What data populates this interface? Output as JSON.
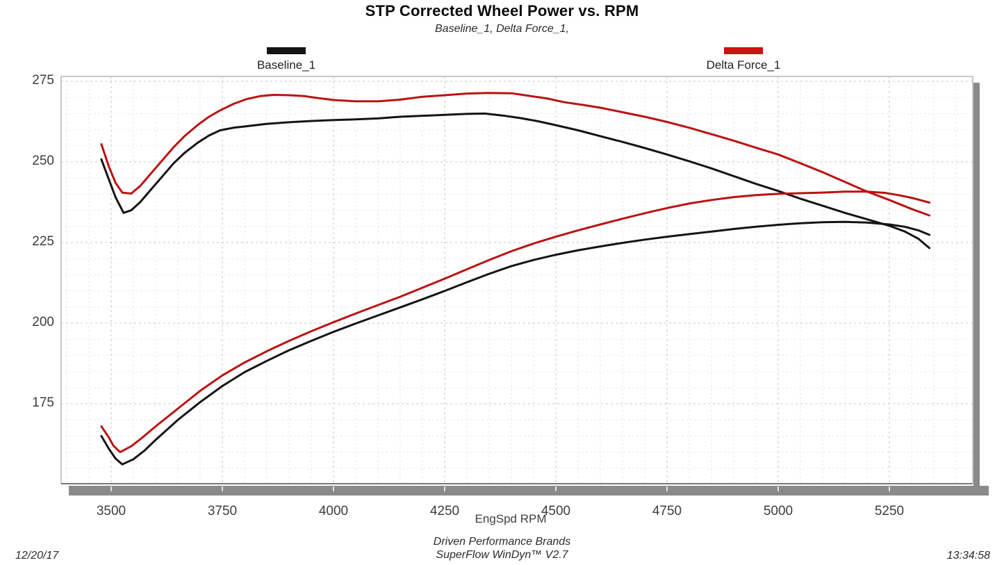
{
  "header": {
    "title": "STP Corrected Wheel Power vs. RPM",
    "subtitle": "Baseline_1, Delta Force_1,"
  },
  "legend": [
    {
      "label": "Baseline_1",
      "color": "#141414"
    },
    {
      "label": "Delta Force_1",
      "color": "#cc1111"
    }
  ],
  "footer": {
    "xaxis_title": "EngSpd  RPM",
    "brand_line1": "Driven Performance Brands",
    "brand_line2": "SuperFlow WinDyn™ V2.7",
    "date": "12/20/17",
    "time": "13:34:58"
  },
  "chart_data": {
    "type": "line",
    "title": "STP Corrected Wheel Power vs. RPM",
    "subtitle": "Baseline_1, Delta Force_1,",
    "xlabel": "EngSpd RPM",
    "ylabel": "",
    "x_ticks": [
      3500,
      3750,
      4000,
      4250,
      4500,
      4750,
      5000,
      5250
    ],
    "y_ticks": [
      175,
      200,
      225,
      250,
      275
    ],
    "xlim": [
      3387,
      5437
    ],
    "ylim": [
      150,
      276
    ],
    "grid": {
      "x_minor_step": 50,
      "x_major_step": 250,
      "y_minor_step": 5,
      "y_major_step": 25,
      "style": "dashed"
    },
    "legend_position": "top",
    "colors": {
      "baseline": "#141414",
      "delta": "#bb1212",
      "grid_minor": "#e2e2e2",
      "grid_major": "#c6c6c6",
      "border_light": "#b6b6b6",
      "border_dark": "#8a8a8a",
      "axis_bar": "#8a8a8a",
      "axis_bar_tick": "#e6e6e6"
    },
    "series": [
      {
        "name": "Baseline_1 (upper curve)",
        "run": "Baseline_1",
        "curve": "upper",
        "color_key": "baseline",
        "points": [
          [
            3478,
            250.8
          ],
          [
            3495,
            244.5
          ],
          [
            3510,
            239.0
          ],
          [
            3528,
            234.2
          ],
          [
            3545,
            235.0
          ],
          [
            3565,
            237.5
          ],
          [
            3590,
            241.5
          ],
          [
            3615,
            245.5
          ],
          [
            3640,
            249.5
          ],
          [
            3665,
            252.8
          ],
          [
            3695,
            256.0
          ],
          [
            3720,
            258.2
          ],
          [
            3745,
            259.8
          ],
          [
            3775,
            260.6
          ],
          [
            3800,
            261.0
          ],
          [
            3850,
            261.8
          ],
          [
            3900,
            262.3
          ],
          [
            3950,
            262.7
          ],
          [
            4000,
            263.0
          ],
          [
            4050,
            263.2
          ],
          [
            4100,
            263.5
          ],
          [
            4150,
            264.0
          ],
          [
            4200,
            264.3
          ],
          [
            4250,
            264.6
          ],
          [
            4300,
            264.9
          ],
          [
            4340,
            265.0
          ],
          [
            4380,
            264.4
          ],
          [
            4420,
            263.6
          ],
          [
            4460,
            262.6
          ],
          [
            4500,
            261.4
          ],
          [
            4550,
            259.8
          ],
          [
            4600,
            258.0
          ],
          [
            4650,
            256.2
          ],
          [
            4700,
            254.3
          ],
          [
            4750,
            252.3
          ],
          [
            4800,
            250.2
          ],
          [
            4850,
            248.0
          ],
          [
            4900,
            245.6
          ],
          [
            4950,
            243.2
          ],
          [
            5000,
            241.0
          ],
          [
            5050,
            238.6
          ],
          [
            5100,
            236.4
          ],
          [
            5150,
            234.2
          ],
          [
            5200,
            232.2
          ],
          [
            5250,
            230.2
          ],
          [
            5285,
            228.4
          ],
          [
            5315,
            226.2
          ],
          [
            5340,
            223.3
          ]
        ]
      },
      {
        "name": "Delta Force_1 (upper curve)",
        "run": "Delta Force_1",
        "curve": "upper",
        "color_key": "delta",
        "points": [
          [
            3478,
            255.5
          ],
          [
            3495,
            248.5
          ],
          [
            3510,
            243.5
          ],
          [
            3525,
            240.5
          ],
          [
            3545,
            240.2
          ],
          [
            3565,
            242.5
          ],
          [
            3590,
            246.5
          ],
          [
            3615,
            250.5
          ],
          [
            3640,
            254.5
          ],
          [
            3665,
            258.0
          ],
          [
            3695,
            261.5
          ],
          [
            3720,
            264.0
          ],
          [
            3745,
            266.0
          ],
          [
            3775,
            268.0
          ],
          [
            3805,
            269.5
          ],
          [
            3835,
            270.4
          ],
          [
            3865,
            270.8
          ],
          [
            3900,
            270.7
          ],
          [
            3935,
            270.4
          ],
          [
            3965,
            269.8
          ],
          [
            4000,
            269.2
          ],
          [
            4050,
            268.8
          ],
          [
            4100,
            268.8
          ],
          [
            4150,
            269.3
          ],
          [
            4200,
            270.2
          ],
          [
            4250,
            270.7
          ],
          [
            4300,
            271.2
          ],
          [
            4350,
            271.4
          ],
          [
            4400,
            271.3
          ],
          [
            4440,
            270.5
          ],
          [
            4480,
            269.7
          ],
          [
            4520,
            268.5
          ],
          [
            4560,
            267.7
          ],
          [
            4600,
            266.8
          ],
          [
            4650,
            265.4
          ],
          [
            4700,
            264.0
          ],
          [
            4750,
            262.4
          ],
          [
            4800,
            260.6
          ],
          [
            4850,
            258.6
          ],
          [
            4900,
            256.6
          ],
          [
            4950,
            254.4
          ],
          [
            5000,
            252.3
          ],
          [
            5050,
            249.6
          ],
          [
            5100,
            246.8
          ],
          [
            5150,
            243.8
          ],
          [
            5200,
            240.8
          ],
          [
            5250,
            238.2
          ],
          [
            5300,
            235.4
          ],
          [
            5340,
            233.4
          ]
        ]
      },
      {
        "name": "Baseline_1 (lower curve)",
        "run": "Baseline_1",
        "curve": "lower",
        "color_key": "baseline",
        "points": [
          [
            3478,
            165.0
          ],
          [
            3495,
            161.0
          ],
          [
            3510,
            158.0
          ],
          [
            3525,
            156.2
          ],
          [
            3550,
            157.8
          ],
          [
            3575,
            160.5
          ],
          [
            3600,
            163.8
          ],
          [
            3650,
            170.0
          ],
          [
            3700,
            175.5
          ],
          [
            3750,
            180.5
          ],
          [
            3800,
            184.8
          ],
          [
            3850,
            188.3
          ],
          [
            3900,
            191.6
          ],
          [
            3950,
            194.5
          ],
          [
            4000,
            197.3
          ],
          [
            4050,
            199.9
          ],
          [
            4100,
            202.4
          ],
          [
            4150,
            204.9
          ],
          [
            4200,
            207.4
          ],
          [
            4250,
            210.0
          ],
          [
            4300,
            212.7
          ],
          [
            4350,
            215.3
          ],
          [
            4400,
            217.7
          ],
          [
            4450,
            219.6
          ],
          [
            4500,
            221.2
          ],
          [
            4550,
            222.6
          ],
          [
            4600,
            223.8
          ],
          [
            4650,
            224.9
          ],
          [
            4700,
            225.9
          ],
          [
            4750,
            226.8
          ],
          [
            4800,
            227.6
          ],
          [
            4850,
            228.4
          ],
          [
            4900,
            229.2
          ],
          [
            4950,
            229.9
          ],
          [
            5000,
            230.5
          ],
          [
            5050,
            231.0
          ],
          [
            5100,
            231.3
          ],
          [
            5150,
            231.4
          ],
          [
            5200,
            231.2
          ],
          [
            5250,
            230.6
          ],
          [
            5285,
            229.9
          ],
          [
            5315,
            228.8
          ],
          [
            5340,
            227.4
          ]
        ]
      },
      {
        "name": "Delta Force_1 (lower curve)",
        "run": "Delta Force_1",
        "curve": "lower",
        "color_key": "delta",
        "points": [
          [
            3478,
            168.0
          ],
          [
            3495,
            164.5
          ],
          [
            3505,
            162.0
          ],
          [
            3520,
            160.0
          ],
          [
            3545,
            161.8
          ],
          [
            3570,
            164.5
          ],
          [
            3600,
            168.0
          ],
          [
            3650,
            173.5
          ],
          [
            3700,
            179.0
          ],
          [
            3750,
            183.8
          ],
          [
            3800,
            187.8
          ],
          [
            3850,
            191.3
          ],
          [
            3900,
            194.5
          ],
          [
            3950,
            197.5
          ],
          [
            4000,
            200.3
          ],
          [
            4050,
            203.0
          ],
          [
            4100,
            205.6
          ],
          [
            4150,
            208.2
          ],
          [
            4200,
            211.0
          ],
          [
            4250,
            213.8
          ],
          [
            4300,
            216.7
          ],
          [
            4350,
            219.6
          ],
          [
            4400,
            222.3
          ],
          [
            4450,
            224.7
          ],
          [
            4500,
            226.8
          ],
          [
            4550,
            228.8
          ],
          [
            4600,
            230.6
          ],
          [
            4650,
            232.4
          ],
          [
            4700,
            234.1
          ],
          [
            4750,
            235.7
          ],
          [
            4800,
            237.1
          ],
          [
            4850,
            238.2
          ],
          [
            4900,
            239.1
          ],
          [
            4950,
            239.7
          ],
          [
            5000,
            240.1
          ],
          [
            5050,
            240.3
          ],
          [
            5100,
            240.5
          ],
          [
            5150,
            240.8
          ],
          [
            5200,
            240.8
          ],
          [
            5240,
            240.4
          ],
          [
            5275,
            239.6
          ],
          [
            5305,
            238.7
          ],
          [
            5340,
            237.4
          ]
        ]
      }
    ]
  }
}
